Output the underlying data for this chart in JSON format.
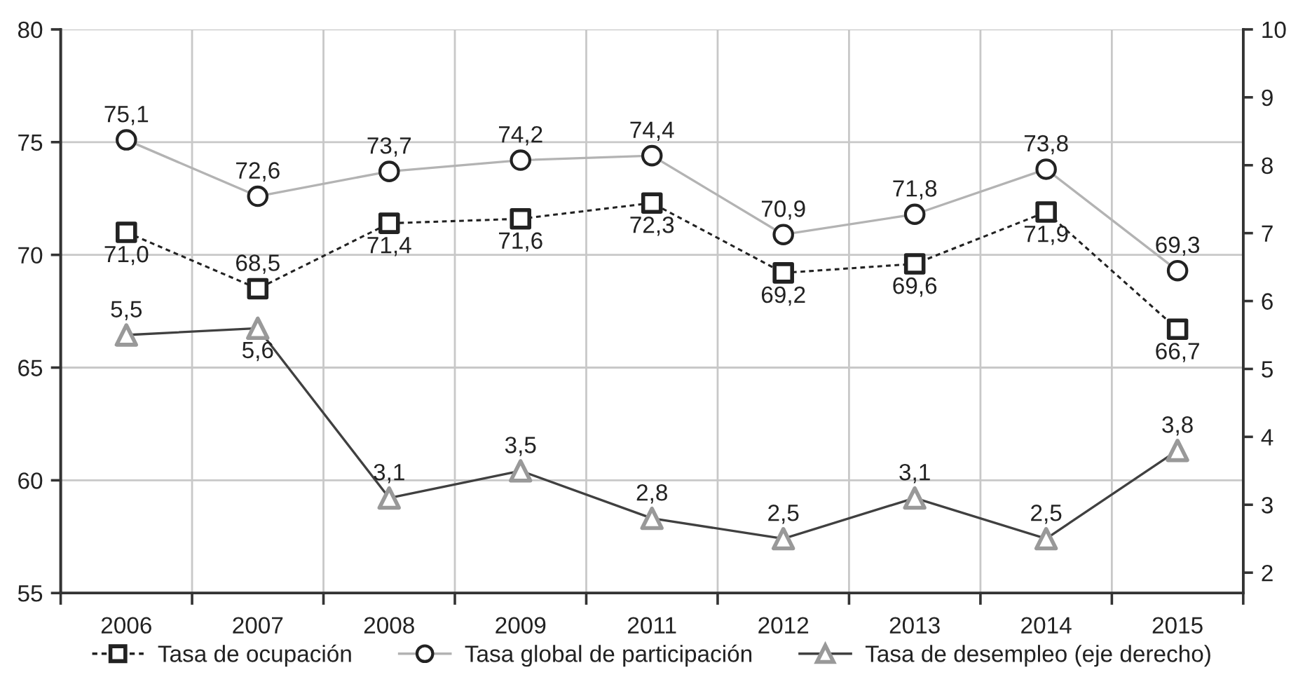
{
  "chart_data": {
    "type": "line",
    "categories": [
      "2006",
      "2007",
      "2008",
      "2009",
      "2011",
      "2012",
      "2013",
      "2014",
      "2015"
    ],
    "ylim": [
      55,
      80
    ],
    "yticks": [
      55,
      60,
      65,
      70,
      75,
      80
    ],
    "y2lim": [
      1.7,
      10
    ],
    "y2ticks": [
      2,
      3,
      4,
      5,
      6,
      7,
      8,
      9,
      10
    ],
    "grid": true,
    "legend": "bottom",
    "series": [
      {
        "name": "Tasa de ocupación",
        "color": "#222222",
        "colors": [
          "#222222",
          "#222222",
          "#222222",
          "#222222",
          "#222222",
          "#222222",
          "#222222",
          "#222222",
          "#222222"
        ],
        "marker": "square",
        "line_style": "dotted",
        "values": [
          71.0,
          68.5,
          71.4,
          71.6,
          72.3,
          69.2,
          69.6,
          71.9,
          66.7
        ],
        "value_labels": [
          "71,0",
          "68,5",
          "71,4",
          "71,6",
          "72,3",
          "69,2",
          "69,6",
          "71,9",
          "66,7"
        ]
      },
      {
        "name": "Tasa global de participación",
        "color": "#b3b3b3",
        "colors": [
          "#222222",
          "#222222",
          "#222222",
          "#222222",
          "#222222",
          "#222222",
          "#222222",
          "#222222",
          "#222222"
        ],
        "marker": "circle",
        "line_style": "solid",
        "values": [
          75.1,
          72.6,
          73.7,
          74.2,
          74.4,
          70.9,
          71.8,
          73.8,
          69.3
        ],
        "value_labels": [
          "75,1",
          "72,6",
          "73,7",
          "74,2",
          "74,4",
          "70,9",
          "71,8",
          "73,8",
          "69,3"
        ]
      },
      {
        "name": "Tasa de desempleo (eje derecho)",
        "color": "#404040",
        "colors": [
          "#999999",
          "#999999",
          "#999999",
          "#999999",
          "#999999",
          "#999999",
          "#999999",
          "#999999",
          "#999999"
        ],
        "marker": "triangle",
        "line_style": "solid",
        "axis": "y2",
        "values": [
          5.5,
          5.6,
          3.1,
          3.5,
          2.8,
          2.5,
          3.1,
          2.5,
          3.8
        ],
        "value_labels": [
          "5,5",
          "5,6",
          "3,1",
          "3,5",
          "2,8",
          "2,5",
          "3,1",
          "2,5",
          "3,8"
        ]
      }
    ]
  }
}
